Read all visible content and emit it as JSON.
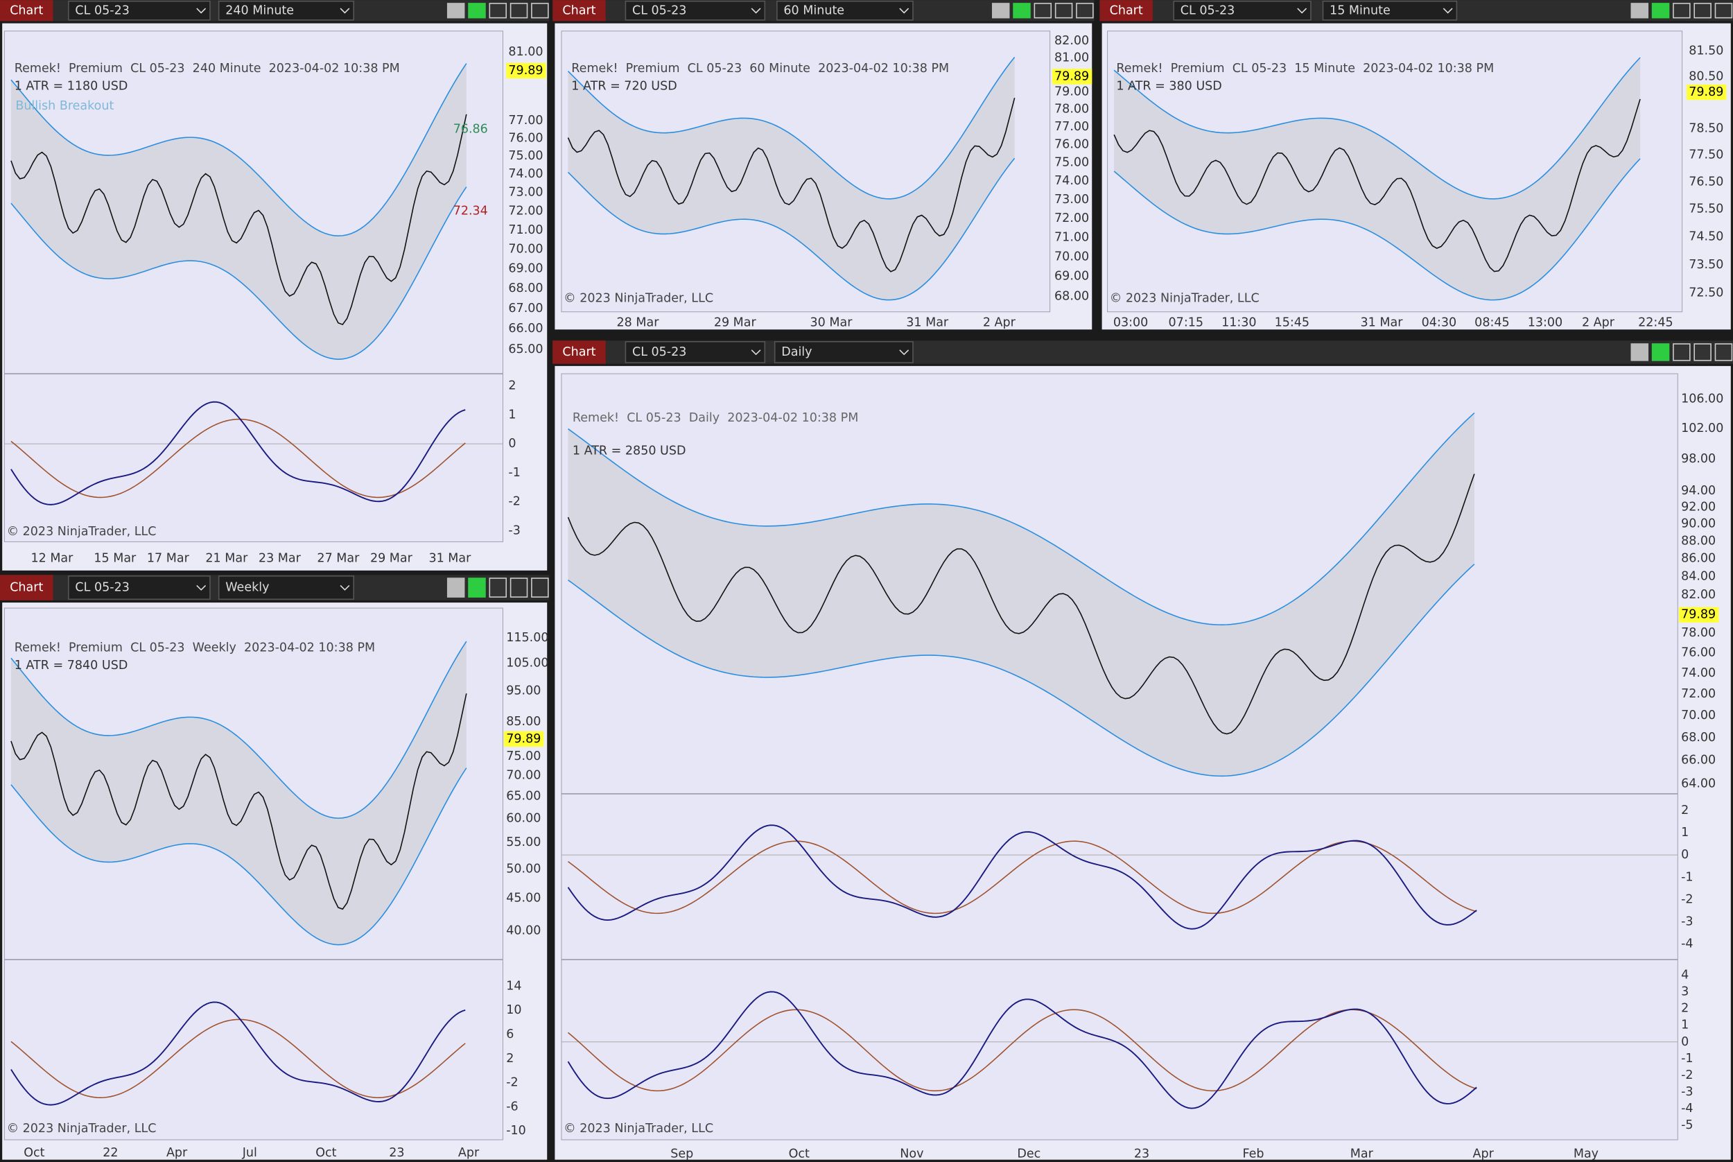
{
  "panels": [
    {
      "toolbar": {
        "tab": "Chart",
        "instrument": "CL 05-23",
        "interval": "240 Minute"
      },
      "header": "Remek!  Premium  CL 05-23  240 Minute  2023-04-02 10:38 PM",
      "atr": "1 ATR = 1180 USD",
      "price_ticks": [
        "81.00",
        "77.00",
        "76.00",
        "75.00",
        "74.00",
        "73.00",
        "72.00",
        "71.00",
        "70.00",
        "69.00",
        "68.00",
        "67.00",
        "66.00",
        "65.00"
      ],
      "last_price": "79.89",
      "indicator_ticks": [
        [
          "2",
          "1",
          "0",
          "-1",
          "-2",
          "-3"
        ]
      ],
      "x_labels": [
        "12 Mar",
        "15 Mar",
        "17 Mar",
        "21 Mar",
        "23 Mar",
        "27 Mar",
        "29 Mar",
        "31 Mar"
      ],
      "annotations": [
        "Bullish Breakout",
        "76.86",
        "72.34"
      ],
      "copyright": "© 2023 NinjaTrader, LLC"
    },
    {
      "toolbar": {
        "tab": "Chart",
        "instrument": "CL 05-23",
        "interval": "60 Minute"
      },
      "header": "Remek!  Premium  CL 05-23  60 Minute  2023-04-02 10:38 PM",
      "atr": "1 ATR = 720 USD",
      "price_ticks": [
        "82.00",
        "81.00",
        "79.00",
        "78.00",
        "77.00",
        "76.00",
        "75.00",
        "74.00",
        "73.00",
        "72.00",
        "71.00",
        "70.00",
        "69.00",
        "68.00"
      ],
      "last_price": "79.89",
      "indicator_ticks": [],
      "x_labels": [
        "28 Mar",
        "29 Mar",
        "30 Mar",
        "31 Mar",
        "2 Apr"
      ],
      "annotations": [],
      "copyright": "© 2023 NinjaTrader, LLC"
    },
    {
      "toolbar": {
        "tab": "Chart",
        "instrument": "CL 05-23",
        "interval": "15 Minute"
      },
      "header": "Remek!  Premium  CL 05-23  15 Minute  2023-04-02 10:38 PM",
      "atr": "1 ATR = 380 USD",
      "price_ticks": [
        "81.50",
        "80.50",
        "78.50",
        "77.50",
        "76.50",
        "75.50",
        "74.50",
        "73.50",
        "72.50"
      ],
      "last_price": "79.89",
      "indicator_ticks": [],
      "x_labels": [
        "03:00",
        "07:15",
        "11:30",
        "15:45",
        "31 Mar",
        "04:30",
        "08:45",
        "13:00",
        "2 Apr",
        "22:45"
      ],
      "annotations": [],
      "copyright": "© 2023 NinjaTrader, LLC"
    },
    {
      "toolbar": {
        "tab": "Chart",
        "instrument": "CL 05-23",
        "interval": "Weekly"
      },
      "header": "Remek!  Premium  CL 05-23  Weekly  2023-04-02 10:38 PM",
      "atr": "1 ATR = 7840 USD",
      "price_ticks": [
        "115.00",
        "105.00",
        "95.00",
        "85.00",
        "75.00",
        "70.00",
        "65.00",
        "60.00",
        "55.00",
        "50.00",
        "45.00",
        "40.00"
      ],
      "last_price": "79.89",
      "indicator_ticks": [
        [
          "14",
          "10",
          "6",
          "2",
          "-2",
          "-6",
          "-10"
        ]
      ],
      "x_labels": [
        "Oct",
        "22",
        "Apr",
        "Jul",
        "Oct",
        "23",
        "Apr"
      ],
      "annotations": [],
      "copyright": "© 2023 NinjaTrader, LLC"
    },
    {
      "toolbar": {
        "tab": "Chart",
        "instrument": "CL 05-23",
        "interval": "Daily"
      },
      "header": "Remek!  CL 05-23  Daily  2023-04-02 10:38 PM",
      "atr": "1 ATR = 2850 USD",
      "price_ticks": [
        "106.00",
        "102.00",
        "98.00",
        "94.00",
        "92.00",
        "90.00",
        "88.00",
        "86.00",
        "84.00",
        "82.00",
        "78.00",
        "76.00",
        "74.00",
        "72.00",
        "70.00",
        "68.00",
        "66.00",
        "64.00"
      ],
      "last_price": "79.89",
      "indicator_ticks": [
        [
          "2",
          "1",
          "0",
          "-1",
          "-2",
          "-3",
          "-4"
        ],
        [
          "4",
          "3",
          "2",
          "1",
          "0",
          "-1",
          "-2",
          "-3",
          "-4",
          "-5"
        ]
      ],
      "x_labels": [
        "Sep",
        "Oct",
        "Nov",
        "Dec",
        "23",
        "Feb",
        "Mar",
        "Apr",
        "May"
      ],
      "annotations": [],
      "copyright": "© 2023 NinjaTrader, LLC"
    }
  ]
}
